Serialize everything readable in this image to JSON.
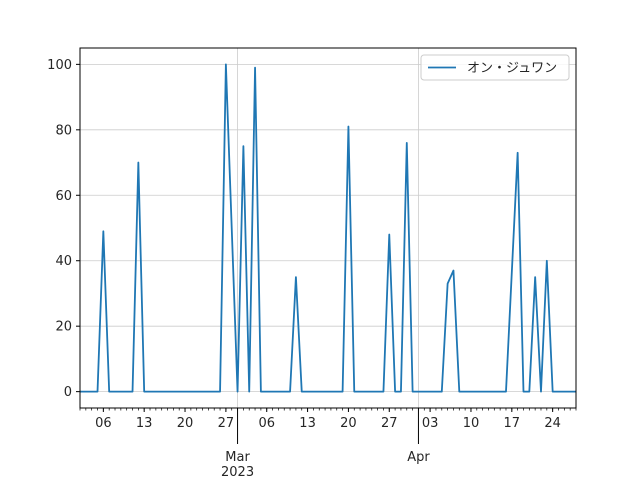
{
  "chart_data": {
    "type": "line",
    "title": "",
    "xlabel": "",
    "ylabel": "",
    "x_start": "2023-02-02",
    "x_end": "2023-04-28",
    "ylim": [
      -5,
      105
    ],
    "grid": true,
    "legend_position": "upper right",
    "colors": {
      "series": "#1f77b4",
      "grid": "#cccccc",
      "axes": "#000000"
    },
    "x_ticks": [
      {
        "date": "2023-02-06",
        "label": "06"
      },
      {
        "date": "2023-02-13",
        "label": "13"
      },
      {
        "date": "2023-02-20",
        "label": "20"
      },
      {
        "date": "2023-02-27",
        "label": "27"
      },
      {
        "date": "2023-03-01",
        "label": "Mar",
        "label2": "2023",
        "major": true
      },
      {
        "date": "2023-03-06",
        "label": "06"
      },
      {
        "date": "2023-03-13",
        "label": "13"
      },
      {
        "date": "2023-03-20",
        "label": "20"
      },
      {
        "date": "2023-03-27",
        "label": "27"
      },
      {
        "date": "2023-04-01",
        "label": "Apr",
        "major": true
      },
      {
        "date": "2023-04-03",
        "label": "03"
      },
      {
        "date": "2023-04-10",
        "label": "10"
      },
      {
        "date": "2023-04-17",
        "label": "17"
      },
      {
        "date": "2023-04-24",
        "label": "24"
      }
    ],
    "y_ticks": [
      0,
      20,
      40,
      60,
      80,
      100
    ],
    "series": [
      {
        "name": "オン・ジュワン",
        "points": [
          [
            "2023-02-02",
            0
          ],
          [
            "2023-02-05",
            0
          ],
          [
            "2023-02-06",
            49
          ],
          [
            "2023-02-07",
            0
          ],
          [
            "2023-02-11",
            0
          ],
          [
            "2023-02-12",
            70
          ],
          [
            "2023-02-13",
            0
          ],
          [
            "2023-02-26",
            0
          ],
          [
            "2023-02-27",
            100
          ],
          [
            "2023-03-01",
            0
          ],
          [
            "2023-03-02",
            75
          ],
          [
            "2023-03-03",
            0
          ],
          [
            "2023-03-04",
            99
          ],
          [
            "2023-03-05",
            0
          ],
          [
            "2023-03-10",
            0
          ],
          [
            "2023-03-11",
            35
          ],
          [
            "2023-03-12",
            0
          ],
          [
            "2023-03-19",
            0
          ],
          [
            "2023-03-20",
            81
          ],
          [
            "2023-03-21",
            0
          ],
          [
            "2023-03-26",
            0
          ],
          [
            "2023-03-27",
            48
          ],
          [
            "2023-03-28",
            0
          ],
          [
            "2023-03-29",
            0
          ],
          [
            "2023-03-30",
            76
          ],
          [
            "2023-03-31",
            0
          ],
          [
            "2023-04-05",
            0
          ],
          [
            "2023-04-06",
            33
          ],
          [
            "2023-04-07",
            37
          ],
          [
            "2023-04-08",
            0
          ],
          [
            "2023-04-16",
            0
          ],
          [
            "2023-04-18",
            73
          ],
          [
            "2023-04-19",
            0
          ],
          [
            "2023-04-20",
            0
          ],
          [
            "2023-04-21",
            35
          ],
          [
            "2023-04-22",
            0
          ],
          [
            "2023-04-23",
            40
          ],
          [
            "2023-04-24",
            0
          ],
          [
            "2023-04-28",
            0
          ]
        ]
      }
    ]
  }
}
